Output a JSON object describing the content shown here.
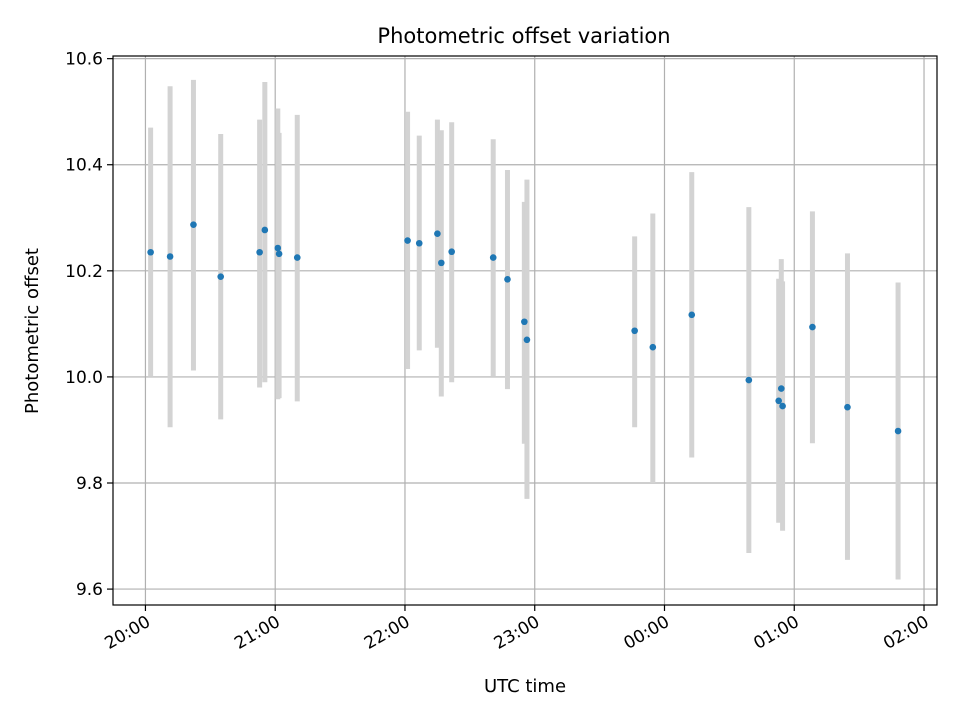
{
  "chart_data": {
    "type": "scatter",
    "title": "Photometric offset variation",
    "xlabel": "UTC time",
    "ylabel": "Photometric offset",
    "x_unit": "UTC time (hours after 20:00)",
    "xlim_hours": [
      -0.25,
      6.1
    ],
    "ylim": [
      9.57,
      10.605
    ],
    "x_ticks": [
      {
        "label": "20:00",
        "hours": 0
      },
      {
        "label": "21:00",
        "hours": 1
      },
      {
        "label": "22:00",
        "hours": 2
      },
      {
        "label": "23:00",
        "hours": 3
      },
      {
        "label": "00:00",
        "hours": 4
      },
      {
        "label": "01:00",
        "hours": 5
      },
      {
        "label": "02:00",
        "hours": 6
      }
    ],
    "y_ticks": [
      9.6,
      9.8,
      10.0,
      10.2,
      10.4,
      10.6
    ],
    "y_tick_labels": [
      "9.6",
      "9.8",
      "10.0",
      "10.2",
      "10.4",
      "10.6"
    ],
    "grid": true,
    "colors": {
      "point": "#1f77b4",
      "errorbar": "#d3d3d3",
      "grid": "#b0b0b0"
    },
    "points": [
      {
        "x": 0.04,
        "y": 10.235,
        "lo": 10.0,
        "hi": 10.47
      },
      {
        "x": 0.19,
        "y": 10.227,
        "lo": 9.905,
        "hi": 10.548
      },
      {
        "x": 0.37,
        "y": 10.287,
        "lo": 10.012,
        "hi": 10.56
      },
      {
        "x": 0.58,
        "y": 10.189,
        "lo": 9.92,
        "hi": 10.458
      },
      {
        "x": 0.88,
        "y": 10.235,
        "lo": 9.98,
        "hi": 10.485
      },
      {
        "x": 0.92,
        "y": 10.277,
        "lo": 9.99,
        "hi": 10.556
      },
      {
        "x": 1.02,
        "y": 10.243,
        "lo": 9.958,
        "hi": 10.506
      },
      {
        "x": 1.03,
        "y": 10.232,
        "lo": 9.96,
        "hi": 10.46
      },
      {
        "x": 1.17,
        "y": 10.225,
        "lo": 9.954,
        "hi": 10.494
      },
      {
        "x": 2.02,
        "y": 10.257,
        "lo": 10.015,
        "hi": 10.5
      },
      {
        "x": 2.11,
        "y": 10.252,
        "lo": 10.05,
        "hi": 10.455
      },
      {
        "x": 2.25,
        "y": 10.27,
        "lo": 10.055,
        "hi": 10.485
      },
      {
        "x": 2.28,
        "y": 10.215,
        "lo": 9.963,
        "hi": 10.465
      },
      {
        "x": 2.36,
        "y": 10.236,
        "lo": 9.99,
        "hi": 10.48
      },
      {
        "x": 2.68,
        "y": 10.225,
        "lo": 10.0,
        "hi": 10.448
      },
      {
        "x": 2.79,
        "y": 10.184,
        "lo": 9.977,
        "hi": 10.39
      },
      {
        "x": 2.92,
        "y": 10.104,
        "lo": 9.874,
        "hi": 10.33
      },
      {
        "x": 2.94,
        "y": 10.07,
        "lo": 9.77,
        "hi": 10.372
      },
      {
        "x": 3.77,
        "y": 10.087,
        "lo": 9.905,
        "hi": 10.265
      },
      {
        "x": 3.91,
        "y": 10.056,
        "lo": 9.8,
        "hi": 10.308
      },
      {
        "x": 4.21,
        "y": 10.117,
        "lo": 9.848,
        "hi": 10.386
      },
      {
        "x": 4.65,
        "y": 9.994,
        "lo": 9.668,
        "hi": 10.32
      },
      {
        "x": 4.88,
        "y": 9.955,
        "lo": 9.725,
        "hi": 10.185
      },
      {
        "x": 4.9,
        "y": 9.978,
        "lo": 9.735,
        "hi": 10.222
      },
      {
        "x": 4.91,
        "y": 9.945,
        "lo": 9.71,
        "hi": 10.18
      },
      {
        "x": 5.14,
        "y": 10.094,
        "lo": 9.875,
        "hi": 10.312
      },
      {
        "x": 5.41,
        "y": 9.943,
        "lo": 9.655,
        "hi": 10.233
      },
      {
        "x": 5.8,
        "y": 9.898,
        "lo": 9.618,
        "hi": 10.178
      }
    ]
  }
}
